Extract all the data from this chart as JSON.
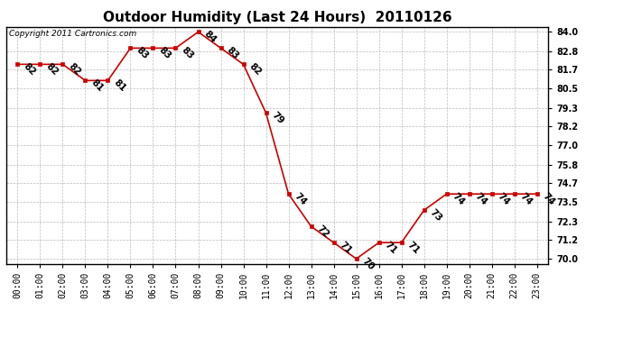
{
  "title": "Outdoor Humidity (Last 24 Hours)  20110126",
  "copyright_text": "Copyright 2011 Cartronics.com",
  "hours": [
    "00:00",
    "01:00",
    "02:00",
    "03:00",
    "04:00",
    "05:00",
    "06:00",
    "07:00",
    "08:00",
    "09:00",
    "10:00",
    "11:00",
    "12:00",
    "13:00",
    "14:00",
    "15:00",
    "16:00",
    "17:00",
    "18:00",
    "19:00",
    "20:00",
    "21:00",
    "22:00",
    "23:00"
  ],
  "values": [
    82,
    82,
    82,
    81,
    81,
    83,
    83,
    83,
    84,
    83,
    82,
    79,
    74,
    72,
    71,
    70,
    71,
    71,
    73,
    74,
    74,
    74,
    74,
    74
  ],
  "yticks": [
    70.0,
    71.2,
    72.3,
    73.5,
    74.7,
    75.8,
    77.0,
    78.2,
    79.3,
    80.5,
    81.7,
    82.8,
    84.0
  ],
  "ylim": [
    69.7,
    84.3
  ],
  "line_color": "#cc0000",
  "marker_color": "#cc0000",
  "bg_color": "#ffffff",
  "grid_color": "#bbbbbb",
  "title_fontsize": 11,
  "label_fontsize": 7,
  "annot_fontsize": 7.5,
  "copyright_fontsize": 6.5,
  "border_color": "#000000"
}
